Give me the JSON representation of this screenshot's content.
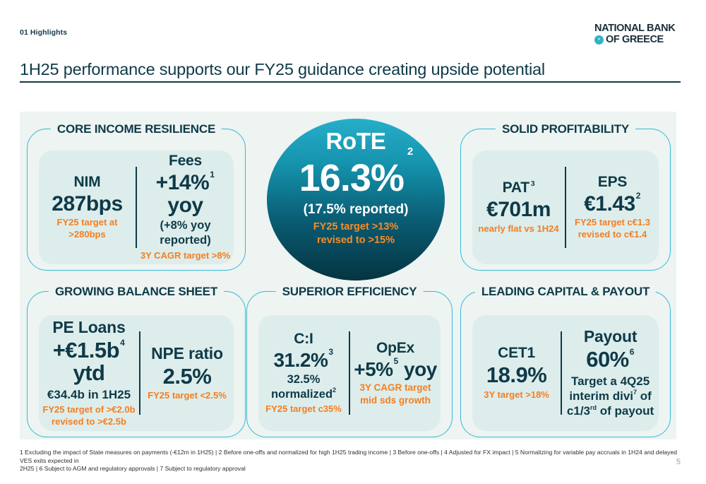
{
  "header": {
    "section_label": "01 Highlights",
    "logo_line1": "NATIONAL BANK",
    "logo_line2": "OF GREECE",
    "title": "1H25 performance supports our FY25 guidance creating upside potential"
  },
  "rote_circle": {
    "label": "RoTE",
    "value": "16.3%",
    "value_sup": "2",
    "reported": "(17.5% reported)",
    "target_line1": "FY25 target >13%",
    "target_line2": "revised to >15%"
  },
  "panels": {
    "core_income": {
      "title": "CORE INCOME RESILIENCE",
      "nim": {
        "label": "NIM",
        "value": "287bps",
        "note_orange": "FY25 target at >280bps"
      },
      "fees": {
        "label": "Fees",
        "value": "+14%",
        "value_sup": "1",
        "value_tail": " yoy",
        "note_dark": "(+8% yoy reported)",
        "note_orange": "3Y CAGR target >8%"
      }
    },
    "profitability": {
      "title": "SOLID PROFITABILITY",
      "pat": {
        "label": "PAT",
        "label_sup": "3",
        "value": "€701m",
        "note_orange": "nearly flat vs 1H24"
      },
      "eps": {
        "label": "EPS",
        "value": "€1.43",
        "value_sup": "2",
        "note_orange_1": "FY25 target c€1.3",
        "note_orange_2": "revised to c€1.4"
      }
    },
    "balance_sheet": {
      "title": "GROWING BALANCE SHEET",
      "pe_loans": {
        "label": "PE Loans",
        "value": "+€1.5b",
        "value_sup": "4",
        "value_tail": " ytd",
        "note_dark": "€34.4b in 1H25",
        "note_orange_1": "FY25 target of >€2.0b",
        "note_orange_2": "revised to >€2.5b"
      },
      "npe": {
        "label": "NPE ratio",
        "value": "2.5%",
        "note_orange": "FY25 target <2.5%"
      }
    },
    "efficiency": {
      "title": "SUPERIOR EFFICIENCY",
      "ci": {
        "label": "C:I",
        "value": "31.2%",
        "value_sup": "3",
        "note_dark": "32.5% normalized",
        "note_dark_sup": "2",
        "note_orange": "FY25 target c35%"
      },
      "opex": {
        "label": "OpEx",
        "value": "+5%",
        "value_sup": "5",
        "value_tail": " yoy",
        "note_orange_1": "3Y CAGR target",
        "note_orange_2": "mid sds growth"
      }
    },
    "capital_payout": {
      "title": "LEADING CAPITAL & PAYOUT",
      "cet1": {
        "label": "CET1",
        "value": "18.9%",
        "note_orange": "3Y target >18%"
      },
      "payout": {
        "label": "Payout",
        "value": "60%",
        "value_sup": "6",
        "note_l1": "Target a 4Q25",
        "note_l2a": "interim divi",
        "note_l2_sup": "7",
        "note_l2b": " of",
        "note_l3a": "c1/3",
        "note_l3_sup": "rd",
        "note_l3b": " of payout"
      }
    }
  },
  "footer": {
    "footnotes_line1": "1 Excluding the impact of State measures on payments (-€12m in 1H25) | 2 Before one-offs and normalized for high 1H25 trading income | 3 Before one-offs | 4 Adjusted for FX impact | 5 Normalizing for variable pay accruals in 1H24 and delayed VES exits expected in",
    "footnotes_line2": "2H25 | 6 Subject to AGM and regulatory approvals | 7 Subject to regulatory approval",
    "page_number": "5"
  },
  "colors": {
    "petrol_text": "#0e3a48",
    "orange_accent": "#f57e20",
    "cyan_border": "#35b9d6",
    "card_background": "#ddedeb",
    "area_background": "#edf4f2",
    "circle_gradient_top": "#27aeca",
    "circle_gradient_bottom": "#053441"
  }
}
